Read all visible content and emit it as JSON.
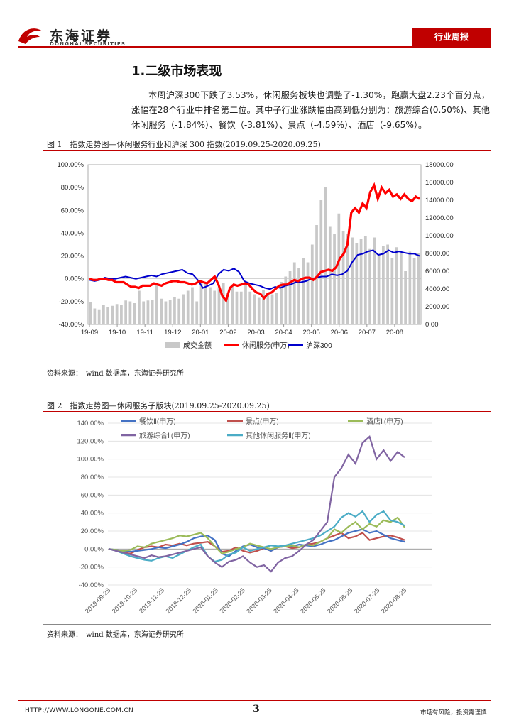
{
  "header": {
    "company_cn": "东海证券",
    "company_en": "DONGHAI SECURITIES",
    "tag": "行业周报"
  },
  "section": {
    "title": "1.二级市场表现",
    "paragraph": "本周沪深300下跌了3.53%，休闲服务板块也调整了-1.30%，跑赢大盘2.23个百分点，涨幅在28个行业中排名第二位。其中子行业涨跌幅由高到低分别为：旅游综合(0.50%)、其他休闲服务（-1.84%）、餐饮（-3.81%）、景点（-4.59%）、酒店（-9.65%）。"
  },
  "figure1": {
    "caption": "图 1　指数走势图—休闲服务行业和沪深 300 指数(2019.09.25-2020.09.25)",
    "source": "资料来源：　wind 数据库，东海证券研究所"
  },
  "figure2": {
    "caption": "图 2　指数走势图—休闲服务子版块(2019.09.25-2020.09.25)",
    "source": "资料来源：　wind 数据库，东海证券研究所"
  },
  "footer": {
    "url": "HTTP://WWW.LONGONE.COM.CN",
    "page": "3",
    "note": "市场有风险，投资需谨慎"
  },
  "colors": {
    "brand": "#c00000",
    "turnover": "#c8c8c8",
    "leisure": "#ff0000",
    "hs300": "#0000cc",
    "catering": "#4472c4",
    "scenic": "#c0504d",
    "hotel": "#9bbb59",
    "tourism": "#8064a2",
    "other": "#4bacc6"
  },
  "chart_data": [
    {
      "type": "line",
      "x_ticks": [
        "19-09",
        "19-10",
        "19-11",
        "19-12",
        "20-01",
        "20-02",
        "20-03",
        "20-04",
        "20-05",
        "20-06",
        "20-07",
        "20-08"
      ],
      "y_left_ticks": [
        "100.00%",
        "80.00%",
        "60.00%",
        "40.00%",
        "20.00%",
        "0.00%",
        "-20.00%",
        "-40.00%"
      ],
      "y_right_ticks": [
        "18000.00",
        "16000.00",
        "14000.00",
        "12000.00",
        "10000.00",
        "8000.00",
        "6000.00",
        "4000.00",
        "2000.00",
        "0.00"
      ],
      "ylim_left": [
        -40,
        100
      ],
      "ylim_right": [
        0,
        18000
      ],
      "legend": [
        "成交金额",
        "休闲服务(申万)",
        "沪深300"
      ],
      "legend_position": "bottom",
      "series": [
        {
          "name": "成交金额",
          "kind": "bar",
          "axis": "right",
          "values": [
            2500,
            1800,
            1700,
            2200,
            2000,
            2100,
            2300,
            2200,
            2700,
            2600,
            2400,
            3800,
            2600,
            2700,
            2800,
            4700,
            2900,
            2600,
            2800,
            3100,
            2900,
            3400,
            3800,
            4200,
            2600,
            5000,
            4800,
            4200,
            3800,
            4200,
            4700,
            3600,
            4500,
            3700,
            3700,
            4400,
            3700,
            3400,
            3000,
            3900,
            3600,
            3400,
            3600,
            4800,
            5400,
            6000,
            7000,
            6400,
            7500,
            7000,
            9000,
            11200,
            14000,
            15500,
            11000,
            10200,
            12500,
            10500,
            10200,
            9800,
            9200,
            9600,
            10000,
            8500,
            9800,
            7800,
            8800,
            9000,
            7500,
            8700,
            8000,
            6000,
            8200,
            7500,
            8000
          ]
        },
        {
          "name": "休闲服务(申万)",
          "kind": "line",
          "axis": "left",
          "values": [
            0,
            -1,
            -1,
            0,
            0,
            -1,
            -1,
            -3,
            -3,
            -3,
            -5,
            -7,
            -7,
            -8,
            -6,
            -6,
            -6,
            -4,
            -5,
            -6,
            -4,
            -3,
            -2,
            -2,
            -3,
            -3,
            -4,
            -5,
            -4,
            -2,
            -3,
            -4,
            -1,
            2,
            -5,
            -15,
            -19,
            -8,
            -5,
            -6,
            -5,
            -4,
            -5,
            -9,
            -12,
            -13,
            -17,
            -13,
            -12,
            -9,
            -6,
            -5,
            -5,
            -3,
            -1,
            -2,
            0,
            1,
            1,
            -1,
            2,
            6,
            7,
            8,
            7,
            10,
            18,
            22,
            30,
            58,
            62,
            58,
            66,
            62,
            76,
            82,
            70,
            80,
            75,
            78,
            72,
            74,
            70,
            74,
            70,
            68,
            72,
            70
          ]
        },
        {
          "name": "沪深300",
          "kind": "line",
          "axis": "left",
          "values": [
            -1,
            -2,
            -1,
            1,
            0,
            0,
            1,
            2,
            1,
            0,
            1,
            2,
            3,
            2,
            4,
            5,
            6,
            7,
            8,
            5,
            4,
            -1,
            -8,
            -6,
            -4,
            4,
            8,
            7,
            9,
            6,
            -2,
            -4,
            -5,
            -6,
            -8,
            -9,
            -7,
            -8,
            -6,
            -5,
            -3,
            -3,
            -2,
            0,
            1,
            2,
            2,
            4,
            3,
            4,
            7,
            15,
            21,
            22,
            24,
            25,
            21,
            22,
            25,
            23,
            24,
            23,
            22,
            22,
            20
          ]
        }
      ]
    },
    {
      "type": "line",
      "x_ticks": [
        "2019-09-25",
        "2019-10-25",
        "2019-11-25",
        "2019-12-25",
        "2020-01-25",
        "2020-02-25",
        "2020-03-25",
        "2020-04-25",
        "2020-05-25",
        "2020-06-25",
        "2020-07-25",
        "2020-08-25"
      ],
      "y_ticks": [
        "140.00%",
        "120.00%",
        "100.00%",
        "80.00%",
        "60.00%",
        "40.00%",
        "20.00%",
        "0.00%",
        "-20.00%",
        "-40.00%"
      ],
      "ylim": [
        -40,
        140
      ],
      "legend_position": "top",
      "series": [
        {
          "name": "餐饮Ⅱ(申万)",
          "values": [
            0,
            -1,
            -2,
            -3,
            -2,
            -1,
            0,
            2,
            1,
            3,
            5,
            8,
            12,
            14,
            15,
            10,
            -5,
            -8,
            -2,
            3,
            5,
            2,
            1,
            -2,
            2,
            4,
            3,
            5,
            4,
            3,
            5,
            8,
            10,
            14,
            18,
            20,
            22,
            18,
            20,
            16,
            12,
            10,
            8
          ]
        },
        {
          "name": "景点(申万)",
          "values": [
            0,
            -2,
            -4,
            -5,
            -1,
            2,
            3,
            2,
            5,
            4,
            6,
            4,
            6,
            7,
            8,
            3,
            -3,
            -2,
            2,
            -2,
            -4,
            -2,
            1,
            -2,
            2,
            3,
            1,
            2,
            5,
            6,
            8,
            12,
            15,
            18,
            12,
            14,
            18,
            10,
            12,
            14,
            15,
            13,
            10
          ]
        },
        {
          "name": "酒店Ⅱ(申万)",
          "values": [
            0,
            -1,
            -2,
            -1,
            3,
            2,
            6,
            8,
            10,
            12,
            15,
            14,
            16,
            18,
            12,
            3,
            -5,
            -3,
            0,
            2,
            6,
            4,
            2,
            0,
            2,
            3,
            4,
            2,
            5,
            4,
            8,
            12,
            22,
            18,
            25,
            30,
            22,
            28,
            25,
            32,
            30,
            35,
            24
          ]
        },
        {
          "name": "旅游综合Ⅱ(申万)",
          "values": [
            0,
            -2,
            -4,
            -6,
            -8,
            -10,
            -7,
            -9,
            -8,
            -6,
            -4,
            -2,
            0,
            2,
            -8,
            -15,
            -20,
            -14,
            -12,
            -8,
            -15,
            -20,
            -18,
            -25,
            -15,
            -10,
            -8,
            -2,
            5,
            10,
            20,
            30,
            80,
            90,
            105,
            95,
            118,
            125,
            100,
            110,
            98,
            108,
            102
          ]
        },
        {
          "name": "其他休闲服务Ⅱ(申万)",
          "values": [
            0,
            -2,
            -5,
            -8,
            -10,
            -12,
            -13,
            -10,
            -8,
            -10,
            -6,
            -2,
            2,
            5,
            -8,
            -14,
            -12,
            -6,
            -4,
            2,
            -2,
            0,
            2,
            4,
            3,
            4,
            6,
            8,
            10,
            12,
            15,
            20,
            25,
            35,
            40,
            36,
            42,
            30,
            38,
            42,
            32,
            30,
            26
          ]
        }
      ]
    }
  ]
}
